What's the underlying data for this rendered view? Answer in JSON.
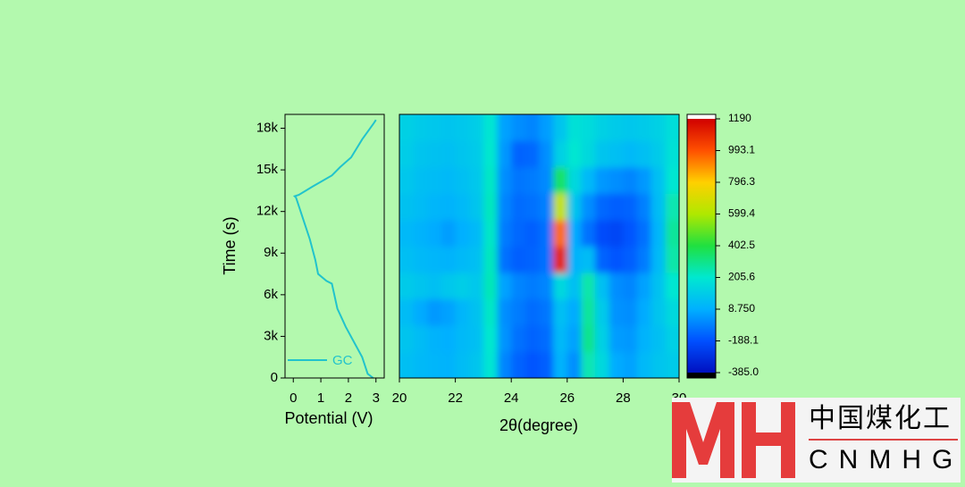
{
  "chart_data": [
    {
      "type": "line",
      "xlabel": "Potential (V)",
      "ylabel": "Time (s)",
      "x": [
        2.9,
        2.7,
        2.5,
        2.2,
        1.9,
        1.6,
        1.4,
        1.2,
        0.9,
        0.8,
        0.6,
        0.3,
        0.1,
        0.05,
        0.2,
        0.7,
        1.4,
        1.7,
        2.1,
        2.5,
        2.9,
        3.0
      ],
      "series": [
        {
          "name": "GC",
          "color": "#22c3cc",
          "values": [
            0,
            300,
            1500,
            2600,
            3700,
            5000,
            6800,
            7000,
            7500,
            8500,
            10000,
            11800,
            13000,
            13100,
            13200,
            13800,
            14600,
            15200,
            15900,
            17200,
            18300,
            18600
          ]
        }
      ],
      "xlim": [
        -0.3,
        3.3
      ],
      "xticks": [
        0,
        1,
        2,
        3
      ],
      "ylim": [
        0,
        19000
      ],
      "yticks": [
        0,
        {
          "value": 3000,
          "label": "3k"
        },
        {
          "value": 6000,
          "label": "6k"
        },
        {
          "value": 9000,
          "label": "9k"
        },
        {
          "value": 12000,
          "label": "12k"
        },
        {
          "value": 15000,
          "label": "15k"
        },
        {
          "value": 18000,
          "label": "18k"
        }
      ],
      "legend": "lower left"
    },
    {
      "type": "heatmap",
      "xlabel": "2θ(degree)",
      "x": [
        20.25,
        20.75,
        21.25,
        21.75,
        22.25,
        22.75,
        23.25,
        23.75,
        24.25,
        24.75,
        25.25,
        25.75,
        26.25,
        26.75,
        27.25,
        27.75,
        28.25,
        28.75,
        29.25,
        29.75
      ],
      "y": [
        950,
        2850,
        4750,
        6650,
        8550,
        10450,
        12350,
        14250,
        16150,
        18050
      ],
      "values": [
        [
          60,
          40,
          30,
          20,
          50,
          80,
          200,
          -80,
          -150,
          -180,
          -160,
          20,
          -60,
          250,
          150,
          0,
          -20,
          40,
          80,
          100
        ],
        [
          80,
          50,
          20,
          10,
          40,
          60,
          210,
          -50,
          -120,
          -150,
          -130,
          40,
          -20,
          300,
          120,
          -30,
          -40,
          20,
          60,
          120
        ],
        [
          50,
          0,
          -40,
          -20,
          30,
          70,
          220,
          -60,
          -100,
          -130,
          -110,
          60,
          0,
          280,
          100,
          -50,
          -60,
          0,
          80,
          150
        ],
        [
          100,
          80,
          60,
          90,
          110,
          90,
          240,
          -20,
          -80,
          -100,
          -80,
          150,
          60,
          260,
          60,
          -60,
          -80,
          -20,
          70,
          200
        ],
        [
          60,
          40,
          30,
          20,
          40,
          60,
          230,
          -120,
          -160,
          -150,
          -120,
          1100,
          20,
          50,
          -150,
          -180,
          -160,
          -100,
          40,
          260
        ],
        [
          40,
          20,
          0,
          -30,
          10,
          40,
          220,
          -100,
          -140,
          -160,
          -120,
          950,
          0,
          -120,
          -200,
          -220,
          -180,
          -120,
          30,
          280
        ],
        [
          70,
          50,
          30,
          20,
          40,
          80,
          230,
          -80,
          -130,
          -120,
          -90,
          650,
          80,
          -60,
          -140,
          -160,
          -150,
          -90,
          50,
          250
        ],
        [
          90,
          60,
          50,
          40,
          60,
          90,
          220,
          -60,
          -110,
          -100,
          -70,
          350,
          150,
          40,
          -40,
          -60,
          -80,
          -40,
          60,
          200
        ],
        [
          110,
          80,
          70,
          60,
          80,
          100,
          210,
          -40,
          -150,
          -140,
          -60,
          120,
          200,
          150,
          80,
          60,
          40,
          60,
          100,
          180
        ],
        [
          120,
          100,
          90,
          80,
          90,
          110,
          200,
          -20,
          -60,
          -80,
          -30,
          80,
          180,
          160,
          120,
          100,
          90,
          100,
          120,
          170
        ]
      ],
      "xlim": [
        20,
        30
      ],
      "xticks": [
        20,
        22,
        24,
        26,
        28,
        30
      ],
      "ylim": [
        0,
        19000
      ],
      "zlim": [
        -385,
        1190
      ],
      "zticks": [
        1190,
        993.1,
        796.3,
        599.4,
        402.5,
        205.6,
        {
          "value": 8.75,
          "label": "8.750"
        },
        -188.1,
        {
          "value": -385,
          "label": "-385.0"
        }
      ],
      "colorscale": [
        "#0010c0",
        "#0050ff",
        "#00b0ff",
        "#00e8d0",
        "#20e040",
        "#b0e800",
        "#ffd000",
        "#ff5000",
        "#d00000"
      ]
    }
  ],
  "logo": {
    "name": "中国煤化工",
    "abbr": "CNMHG"
  }
}
